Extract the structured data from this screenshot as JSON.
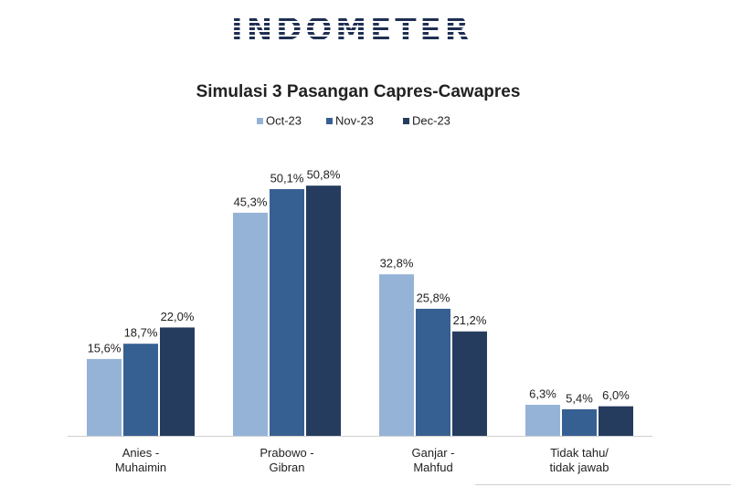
{
  "header": {
    "logo": "INDOMETER"
  },
  "chart_data": {
    "type": "bar",
    "title": "Simulasi 3 Pasangan Capres-Cawapres",
    "categories": [
      "Anies -\nMuhaimin",
      "Prabowo -\nGibran",
      "Ganjar -\nMahfud",
      "Tidak tahu/\ntidak jawab"
    ],
    "series": [
      {
        "name": "Oct-23",
        "color": "#95b3d7",
        "values": [
          15.6,
          45.3,
          32.8,
          6.3
        ],
        "value_labels": [
          "15,6%",
          "45,3%",
          "32,8%",
          "6,3%"
        ]
      },
      {
        "name": "Nov-23",
        "color": "#376092",
        "values": [
          18.7,
          50.1,
          25.8,
          5.4
        ],
        "value_labels": [
          "18,7%",
          "50,1%",
          "25,8%",
          "5,4%"
        ]
      },
      {
        "name": "Dec-23",
        "color": "#253c5e",
        "values": [
          22.0,
          50.8,
          21.2,
          6.0
        ],
        "value_labels": [
          "22,0%",
          "50,8%",
          "21,2%",
          "6,0%"
        ]
      }
    ],
    "legend": "top"
  }
}
